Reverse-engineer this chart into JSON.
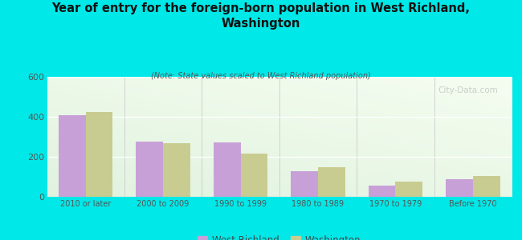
{
  "title": "Year of entry for the foreign-born population in West Richland,\nWashington",
  "subtitle": "(Note: State values scaled to West Richland population)",
  "categories": [
    "2010 or later",
    "2000 to 2009",
    "1990 to 1999",
    "1980 to 1989",
    "1970 to 1979",
    "Before 1970"
  ],
  "west_richland": [
    410,
    275,
    272,
    130,
    58,
    90
  ],
  "washington": [
    425,
    268,
    218,
    148,
    78,
    103
  ],
  "bar_color_wr": "#c8a0d8",
  "bar_color_wa": "#c8cc90",
  "bg_color": "#00e8e8",
  "ylim": [
    0,
    600
  ],
  "yticks": [
    0,
    200,
    400,
    600
  ],
  "watermark": "City-Data.com",
  "legend_label_wr": "West Richland",
  "legend_label_wa": "Washington"
}
